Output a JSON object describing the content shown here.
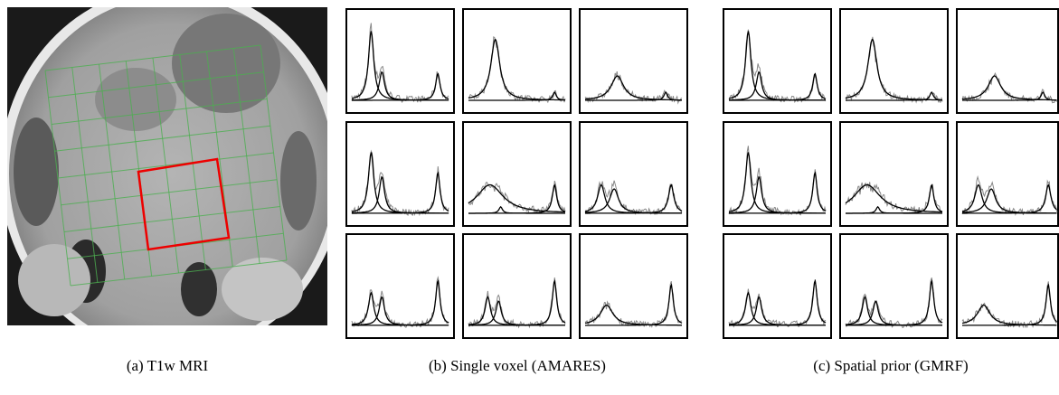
{
  "captions": {
    "a": "(a) T1w MRI",
    "b": "(b) Single voxel (AMARES)",
    "c": "(c) Spatial prior (GMRF)"
  }
}
